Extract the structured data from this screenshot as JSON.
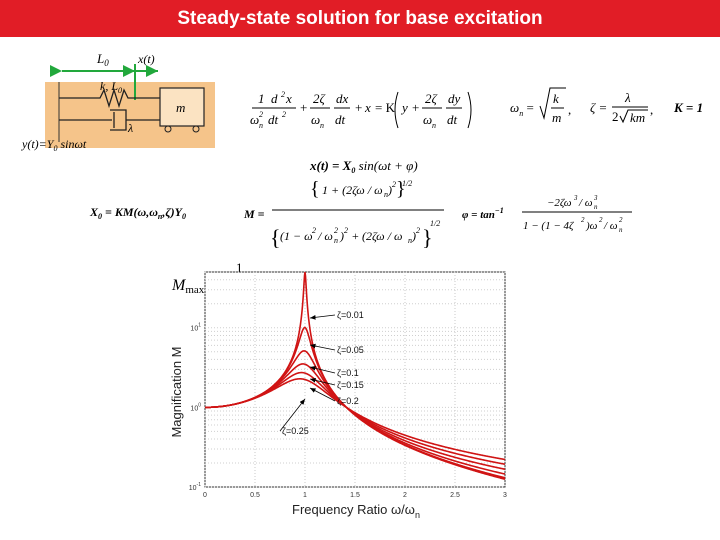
{
  "slide": {
    "title": "Steady-state solution for base excitation"
  },
  "diagram": {
    "label_L0": "L",
    "label_L0_sub": "0",
    "label_xt": "x(t)",
    "label_k": "k, L",
    "label_k_sub": "0",
    "label_m": "m",
    "label_lambda": "λ",
    "label_yt": "y(t)=Y",
    "label_yt_sub": "0",
    "label_yt_tail": " sinωt"
  },
  "equations": {
    "ode_K": "= K",
    "wn_label": "ω",
    "wn_sub": "n",
    "zeta_label": "ζ =",
    "K_eq": "K = 1",
    "xt_lhs": "x(t) = X",
    "xt_sub": "0",
    "xt_rhs": " sin(ωt + φ)",
    "X0_eq": "X",
    "X0_sub": "0",
    "X0_rhs": " = KM(ω,ω",
    "X0_rhs2": "n",
    "X0_rhs3": ",ζ)Y",
    "X0_rhs4": "0",
    "M_label": "M =",
    "phi_label": "φ = tan",
    "phi_sup": "−1",
    "mmax_label": "M",
    "mmax_sub": "max",
    "mmax_approx": "≈"
  },
  "chart_data": {
    "type": "line",
    "title": "",
    "xlabel": "Frequency Ratio ω/ω",
    "xlabel_sub": "n",
    "ylabel": "Magnification M",
    "xlim": [
      0,
      3
    ],
    "ylim_log10": [
      -1,
      1.7
    ],
    "y_scale": "log",
    "grid": true,
    "x_ticks": [
      "0",
      "0.5",
      "1",
      "1.5",
      "2",
      "2.5",
      "3"
    ],
    "y_ticks": [
      {
        "label": "10",
        "sup": "1",
        "value": 10
      },
      {
        "label": "10",
        "sup": "0",
        "value": 1
      },
      {
        "label": "10",
        "sup": "-1",
        "value": 0.1
      }
    ],
    "series": [
      {
        "zeta": 0.01,
        "label": "ζ=0.01"
      },
      {
        "zeta": 0.05,
        "label": "ζ=0.05"
      },
      {
        "zeta": 0.1,
        "label": "ζ=0.1"
      },
      {
        "zeta": 0.15,
        "label": "ζ=0.15"
      },
      {
        "zeta": 0.2,
        "label": "ζ=0.2"
      },
      {
        "zeta": 0.25,
        "label": "ζ=0.25"
      }
    ],
    "line_color": "#d01414"
  }
}
